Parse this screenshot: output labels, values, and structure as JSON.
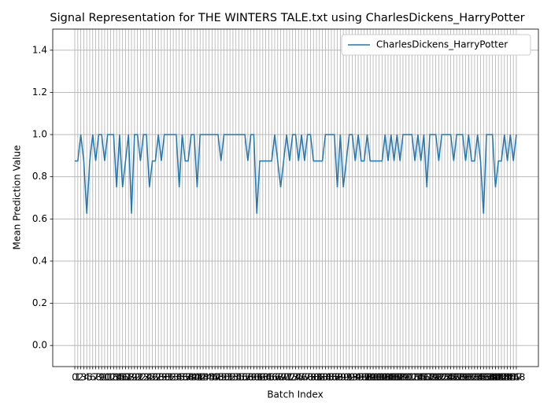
{
  "chart_data": {
    "type": "line",
    "title": "Signal Representation for THE WINTERS TALE.txt using CharlesDickens_HarryPotter",
    "x_label": "Batch Index",
    "y_label": "Mean Prediction Value",
    "x": [
      0,
      1,
      2,
      3,
      4,
      5,
      6,
      7,
      8,
      9,
      10,
      11,
      12,
      13,
      14,
      15,
      16,
      17,
      18,
      19,
      20,
      21,
      22,
      23,
      24,
      25,
      26,
      27,
      28,
      29,
      30,
      31,
      32,
      33,
      34,
      35,
      36,
      37,
      38,
      39,
      40,
      41,
      42,
      43,
      44,
      45,
      46,
      47,
      48,
      49,
      50,
      51,
      52,
      53,
      54,
      55,
      56,
      57,
      58,
      59,
      60,
      61,
      62,
      63,
      64,
      65,
      66,
      67,
      68,
      69,
      70,
      71,
      72,
      73,
      74,
      75,
      76,
      77,
      78,
      79,
      80,
      81,
      82,
      83,
      84,
      85,
      86,
      87,
      88,
      89,
      90,
      91,
      92,
      93,
      94,
      95,
      96,
      97,
      98,
      99,
      100,
      101,
      102,
      103,
      104,
      105,
      106,
      107,
      108,
      109,
      110,
      111,
      112,
      113,
      114,
      115,
      116,
      117,
      118,
      119,
      120,
      121,
      122,
      123,
      124,
      125,
      126,
      127,
      128,
      129,
      130,
      131,
      132,
      133,
      134,
      135,
      136,
      137,
      138,
      139,
      140,
      141,
      142,
      143,
      144,
      145,
      146,
      147,
      148
    ],
    "series": [
      {
        "name": "CharlesDickens_HarryPotter",
        "color": "#1f77b4",
        "values": [
          0.875,
          0.875,
          1,
          0.875,
          0.625,
          0.875,
          1,
          0.875,
          1,
          1,
          0.875,
          1,
          1,
          1,
          0.75,
          1,
          0.75,
          0.875,
          1,
          0.625,
          1,
          1,
          0.875,
          1,
          1,
          0.75,
          0.875,
          0.875,
          1,
          0.875,
          1,
          1,
          1,
          1,
          1,
          0.75,
          1,
          0.875,
          0.875,
          1,
          1,
          0.75,
          1,
          1,
          1,
          1,
          1,
          1,
          1,
          0.875,
          1,
          1,
          1,
          1,
          1,
          1,
          1,
          1,
          0.875,
          1,
          1,
          0.625,
          0.875,
          0.875,
          0.875,
          0.875,
          0.875,
          1,
          0.875,
          0.75,
          0.875,
          1,
          0.875,
          1,
          1,
          0.875,
          1,
          0.875,
          1,
          1,
          0.875,
          0.875,
          0.875,
          0.875,
          1,
          1,
          1,
          1,
          0.75,
          1,
          0.75,
          0.875,
          1,
          1,
          0.875,
          1,
          0.875,
          0.875,
          1,
          0.875,
          0.875,
          0.875,
          0.875,
          0.875,
          1,
          0.875,
          1,
          0.875,
          1,
          0.875,
          1,
          1,
          1,
          1,
          0.875,
          1,
          0.875,
          1,
          0.75,
          1,
          1,
          1,
          0.875,
          1,
          1,
          1,
          1,
          0.875,
          1,
          1,
          1,
          0.875,
          1,
          0.875,
          0.875,
          1,
          0.875,
          0.625,
          1,
          1,
          1,
          0.75,
          0.875,
          0.875,
          1,
          0.875,
          1,
          0.875,
          1
        ]
      }
    ],
    "xlim": [
      -7.4,
      155.4
    ],
    "xticks": [
      0,
      1,
      2,
      3,
      4,
      5,
      6,
      7,
      8,
      9,
      10,
      11,
      12,
      13,
      14,
      15,
      16,
      17,
      18,
      19,
      20,
      21,
      22,
      23,
      24,
      25,
      26,
      27,
      28,
      29,
      30,
      31,
      32,
      33,
      34,
      35,
      36,
      37,
      38,
      39,
      40,
      41,
      42,
      43,
      44,
      45,
      46,
      47,
      48,
      49,
      50,
      51,
      52,
      53,
      54,
      55,
      56,
      57,
      58,
      59,
      60,
      61,
      62,
      63,
      64,
      65,
      66,
      67,
      68,
      69,
      70,
      71,
      72,
      73,
      74,
      75,
      76,
      77,
      78,
      79,
      80,
      81,
      82,
      83,
      84,
      85,
      86,
      87,
      88,
      89,
      90,
      91,
      92,
      93,
      94,
      95,
      96,
      97,
      98,
      99,
      100,
      101,
      102,
      103,
      104,
      105,
      106,
      107,
      108,
      109,
      110,
      111,
      112,
      113,
      114,
      115,
      116,
      117,
      118,
      119,
      120,
      121,
      122,
      123,
      124,
      125,
      126,
      127,
      128,
      129,
      130,
      131,
      132,
      133,
      134,
      135,
      136,
      137,
      138,
      139,
      140,
      141,
      142,
      143,
      144,
      145,
      146,
      147,
      148
    ],
    "ylim": [
      -0.1,
      1.5
    ],
    "yticks": [
      {
        "value": 0,
        "label": "0.0"
      },
      {
        "value": 0.2,
        "label": "0.2"
      },
      {
        "value": 0.4,
        "label": "0.4"
      },
      {
        "value": 0.6,
        "label": "0.6"
      },
      {
        "value": 0.8,
        "label": "0.8"
      },
      {
        "value": 1,
        "label": "1.0"
      },
      {
        "value": 1.2,
        "label": "1.2"
      },
      {
        "value": 1.4,
        "label": "1.4"
      }
    ],
    "grid": true,
    "legend": "upper right"
  }
}
